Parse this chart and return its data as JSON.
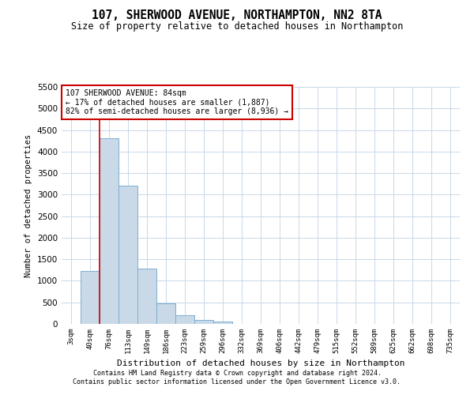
{
  "title": "107, SHERWOOD AVENUE, NORTHAMPTON, NN2 8TA",
  "subtitle": "Size of property relative to detached houses in Northampton",
  "xlabel": "Distribution of detached houses by size in Northampton",
  "ylabel": "Number of detached properties",
  "footer_line1": "Contains HM Land Registry data © Crown copyright and database right 2024.",
  "footer_line2": "Contains public sector information licensed under the Open Government Licence v3.0.",
  "annotation_line1": "107 SHERWOOD AVENUE: 84sqm",
  "annotation_line2": "← 17% of detached houses are smaller (1,887)",
  "annotation_line3": "82% of semi-detached houses are larger (8,936) →",
  "bar_color": "#c9d9e8",
  "bar_edge_color": "#7bafd4",
  "vline_color": "#cc0000",
  "annotation_box_color": "#cc0000",
  "categories": [
    "3sqm",
    "40sqm",
    "76sqm",
    "113sqm",
    "149sqm",
    "186sqm",
    "223sqm",
    "259sqm",
    "296sqm",
    "332sqm",
    "369sqm",
    "406sqm",
    "442sqm",
    "479sqm",
    "515sqm",
    "552sqm",
    "589sqm",
    "625sqm",
    "662sqm",
    "698sqm",
    "735sqm"
  ],
  "values": [
    0,
    1220,
    4300,
    3200,
    1280,
    480,
    200,
    90,
    55,
    0,
    0,
    0,
    0,
    0,
    0,
    0,
    0,
    0,
    0,
    0,
    0
  ],
  "ylim": [
    0,
    5500
  ],
  "yticks": [
    0,
    500,
    1000,
    1500,
    2000,
    2500,
    3000,
    3500,
    4000,
    4500,
    5000,
    5500
  ],
  "vline_position": 1.5,
  "background_color": "#ffffff",
  "grid_color": "#c8d8e8"
}
